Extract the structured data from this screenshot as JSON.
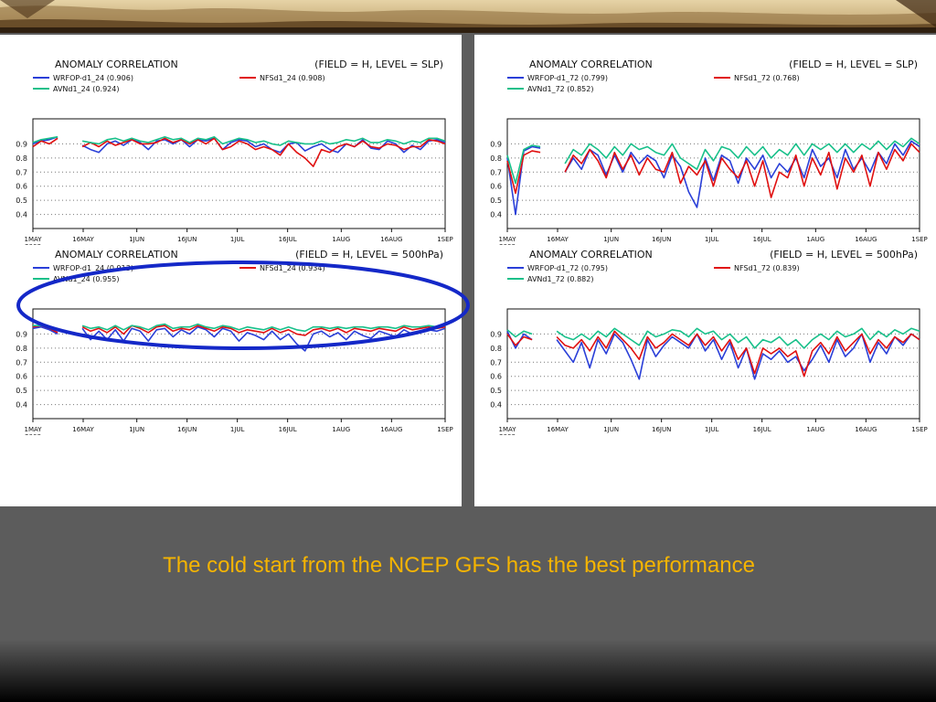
{
  "caption": "The cold start from the NCEP GFS has the best performance",
  "colors": {
    "wrf": "#2a3fd8",
    "nfs": "#e01010",
    "avn": "#18c08a",
    "highlight": "#1428c8",
    "caption": "#f5b400"
  },
  "chart_data": [
    {
      "id": "c1",
      "type": "line",
      "title": "ANOMALY CORRELATION",
      "subtitle": "(FIELD = H, LEVEL = SLP)",
      "legend": [
        "WRFOP-d1_24 (0.906)",
        "NFSd1_24 (0.908)",
        "AVNd1_24 (0.924)"
      ],
      "series": [
        {
          "name": "WRFOP-d1_24",
          "color": "#2a3fd8",
          "values": [
            0.9,
            0.92,
            0.93,
            0.95,
            null,
            null,
            0.89,
            0.86,
            0.84,
            0.9,
            0.92,
            0.89,
            0.93,
            0.91,
            0.86,
            0.92,
            0.93,
            0.9,
            0.93,
            0.88,
            0.93,
            0.92,
            0.94,
            0.86,
            0.91,
            0.93,
            0.92,
            0.88,
            0.9,
            0.86,
            0.84,
            0.9,
            0.91,
            0.85,
            0.88,
            0.9,
            0.86,
            0.84,
            0.9,
            0.88,
            0.93,
            0.87,
            0.86,
            0.92,
            0.9,
            0.84,
            0.89,
            0.86,
            0.92,
            0.93,
            0.91
          ]
        },
        {
          "name": "NFSd1_24",
          "color": "#e01010",
          "values": [
            0.88,
            0.92,
            0.9,
            0.94,
            null,
            null,
            0.88,
            0.91,
            0.88,
            0.92,
            0.89,
            0.91,
            0.93,
            0.9,
            0.9,
            0.91,
            0.94,
            0.91,
            0.93,
            0.9,
            0.93,
            0.9,
            0.94,
            0.86,
            0.88,
            0.92,
            0.9,
            0.86,
            0.88,
            0.86,
            0.82,
            0.9,
            0.84,
            0.8,
            0.74,
            0.86,
            0.84,
            0.88,
            0.9,
            0.88,
            0.92,
            0.88,
            0.87,
            0.9,
            0.89,
            0.86,
            0.88,
            0.88,
            0.93,
            0.92,
            0.9
          ]
        },
        {
          "name": "AVNd1_24",
          "color": "#18c08a",
          "values": [
            0.91,
            0.93,
            0.94,
            0.95,
            null,
            null,
            0.92,
            0.91,
            0.9,
            0.93,
            0.94,
            0.92,
            0.94,
            0.92,
            0.91,
            0.93,
            0.95,
            0.93,
            0.94,
            0.91,
            0.94,
            0.93,
            0.95,
            0.9,
            0.92,
            0.94,
            0.93,
            0.91,
            0.92,
            0.9,
            0.89,
            0.92,
            0.91,
            0.9,
            0.9,
            0.92,
            0.9,
            0.91,
            0.93,
            0.92,
            0.94,
            0.91,
            0.91,
            0.93,
            0.92,
            0.9,
            0.92,
            0.91,
            0.94,
            0.94,
            0.92
          ]
        }
      ],
      "ylim": [
        0.3,
        1.0
      ],
      "yticks": [
        "0.4",
        "0.5",
        "0.6",
        "0.7",
        "0.8",
        "0.9"
      ],
      "xticks": [
        "1MAY",
        "16MAY",
        "1JUN",
        "16JUN",
        "1JUL",
        "16JUL",
        "1AUG",
        "16AUG",
        "1SEP"
      ],
      "year": "2008",
      "xlim": [
        "2008-05-01",
        "2008-09-01"
      ]
    },
    {
      "id": "c2",
      "type": "line",
      "title": "ANOMALY CORRELATION",
      "subtitle": "(FIELD = H, LEVEL = SLP)",
      "legend": [
        "WRFOP-d1_72 (0.799)",
        "NFSd1_72 (0.768)",
        "AVNd1_72 (0.852)"
      ],
      "series": [
        {
          "name": "WRFOP-d1_72",
          "color": "#2a3fd8",
          "values": [
            0.8,
            0.4,
            0.85,
            0.88,
            0.87,
            null,
            null,
            0.7,
            0.8,
            0.72,
            0.86,
            0.82,
            0.68,
            0.82,
            0.7,
            0.84,
            0.76,
            0.82,
            0.78,
            0.66,
            0.82,
            0.74,
            0.56,
            0.45,
            0.8,
            0.64,
            0.82,
            0.78,
            0.62,
            0.8,
            0.72,
            0.82,
            0.66,
            0.76,
            0.7,
            0.8,
            0.66,
            0.86,
            0.74,
            0.8,
            0.66,
            0.86,
            0.72,
            0.8,
            0.7,
            0.84,
            0.76,
            0.9,
            0.82,
            0.92,
            0.88
          ]
        },
        {
          "name": "NFSd1_72",
          "color": "#e01010",
          "values": [
            0.78,
            0.55,
            0.82,
            0.85,
            0.84,
            null,
            null,
            0.7,
            0.82,
            0.76,
            0.86,
            0.78,
            0.66,
            0.84,
            0.72,
            0.82,
            0.68,
            0.8,
            0.72,
            0.7,
            0.84,
            0.62,
            0.74,
            0.68,
            0.78,
            0.6,
            0.8,
            0.72,
            0.66,
            0.78,
            0.6,
            0.78,
            0.52,
            0.7,
            0.66,
            0.82,
            0.6,
            0.8,
            0.68,
            0.84,
            0.58,
            0.8,
            0.7,
            0.82,
            0.6,
            0.84,
            0.72,
            0.86,
            0.78,
            0.9,
            0.84
          ]
        },
        {
          "name": "AVNd1_72",
          "color": "#18c08a",
          "values": [
            0.82,
            0.62,
            0.86,
            0.89,
            0.88,
            null,
            null,
            0.76,
            0.86,
            0.82,
            0.9,
            0.86,
            0.8,
            0.88,
            0.82,
            0.9,
            0.86,
            0.88,
            0.84,
            0.82,
            0.9,
            0.8,
            0.76,
            0.72,
            0.86,
            0.78,
            0.88,
            0.86,
            0.8,
            0.88,
            0.82,
            0.88,
            0.8,
            0.86,
            0.82,
            0.9,
            0.82,
            0.9,
            0.86,
            0.9,
            0.84,
            0.9,
            0.84,
            0.9,
            0.86,
            0.92,
            0.86,
            0.92,
            0.88,
            0.94,
            0.9
          ]
        }
      ],
      "ylim": [
        0.3,
        1.0
      ],
      "yticks": [
        "0.4",
        "0.5",
        "0.6",
        "0.7",
        "0.8",
        "0.9"
      ],
      "xticks": [
        "1MAY",
        "16MAY",
        "1JUN",
        "16JUN",
        "1JUL",
        "16JUL",
        "1AUG",
        "16AUG",
        "1SEP"
      ],
      "year": "2008",
      "xlim": [
        "2008-05-01",
        "2008-09-01"
      ]
    },
    {
      "id": "c3",
      "type": "line",
      "title": "ANOMALY CORRELATION",
      "subtitle": "(FIELD = H, LEVEL = 500hPa)",
      "legend": [
        "WRFOP-d1_24 (0.913)",
        "NFSd1_24 (0.934)",
        "AVNd1_24 (0.955)"
      ],
      "series": [
        {
          "name": "WRFOP-d1_24",
          "color": "#2a3fd8",
          "values": [
            0.94,
            0.95,
            0.93,
            0.9,
            null,
            null,
            0.94,
            0.86,
            0.92,
            0.86,
            0.93,
            0.85,
            0.94,
            0.92,
            0.85,
            0.93,
            0.94,
            0.88,
            0.93,
            0.9,
            0.95,
            0.93,
            0.88,
            0.94,
            0.92,
            0.85,
            0.91,
            0.89,
            0.86,
            0.92,
            0.86,
            0.9,
            0.83,
            0.78,
            0.9,
            0.92,
            0.88,
            0.91,
            0.86,
            0.92,
            0.89,
            0.87,
            0.92,
            0.9,
            0.88,
            0.93,
            0.9,
            0.91,
            0.93,
            0.92,
            0.94
          ]
        },
        {
          "name": "NFSd1_24",
          "color": "#e01010",
          "values": [
            0.95,
            0.96,
            0.94,
            0.91,
            null,
            null,
            0.95,
            0.92,
            0.94,
            0.91,
            0.95,
            0.9,
            0.96,
            0.94,
            0.91,
            0.95,
            0.96,
            0.92,
            0.94,
            0.93,
            0.96,
            0.94,
            0.92,
            0.95,
            0.94,
            0.91,
            0.93,
            0.92,
            0.91,
            0.94,
            0.91,
            0.93,
            0.9,
            0.89,
            0.93,
            0.94,
            0.92,
            0.94,
            0.91,
            0.94,
            0.93,
            0.92,
            0.94,
            0.93,
            0.92,
            0.95,
            0.93,
            0.94,
            0.95,
            0.94,
            0.95
          ]
        },
        {
          "name": "AVNd1_24",
          "color": "#18c08a",
          "values": [
            0.96,
            0.96,
            0.95,
            0.93,
            null,
            null,
            0.96,
            0.94,
            0.95,
            0.93,
            0.96,
            0.93,
            0.96,
            0.95,
            0.93,
            0.96,
            0.97,
            0.94,
            0.95,
            0.95,
            0.97,
            0.95,
            0.94,
            0.96,
            0.95,
            0.93,
            0.95,
            0.94,
            0.93,
            0.95,
            0.93,
            0.95,
            0.93,
            0.92,
            0.95,
            0.95,
            0.94,
            0.95,
            0.94,
            0.95,
            0.95,
            0.94,
            0.95,
            0.95,
            0.94,
            0.96,
            0.95,
            0.95,
            0.96,
            0.95,
            0.96
          ]
        }
      ],
      "ylim": [
        0.3,
        1.0
      ],
      "yticks": [
        "0.4",
        "0.5",
        "0.6",
        "0.7",
        "0.8",
        "0.9"
      ],
      "xticks": [
        "1MAY",
        "16MAY",
        "1JUN",
        "16JUN",
        "1JUL",
        "16JUL",
        "1AUG",
        "16AUG",
        "1SEP"
      ],
      "year": "2008",
      "xlim": [
        "2008-05-01",
        "2008-09-01"
      ]
    },
    {
      "id": "c4",
      "type": "line",
      "title": "ANOMALY CORRELATION",
      "subtitle": "(FIELD = H, LEVEL = 500hPa)",
      "legend": [
        "WRFOP-d1_72 (0.795)",
        "NFSd1_72 (0.839)",
        "AVNd1_72 (0.882)"
      ],
      "series": [
        {
          "name": "WRFOP-d1_72",
          "color": "#2a3fd8",
          "values": [
            0.92,
            0.8,
            0.9,
            0.86,
            null,
            null,
            0.86,
            0.78,
            0.7,
            0.84,
            0.66,
            0.86,
            0.76,
            0.9,
            0.84,
            0.72,
            0.58,
            0.86,
            0.74,
            0.82,
            0.88,
            0.84,
            0.8,
            0.9,
            0.78,
            0.86,
            0.72,
            0.84,
            0.66,
            0.8,
            0.58,
            0.76,
            0.72,
            0.78,
            0.7,
            0.74,
            0.64,
            0.72,
            0.82,
            0.7,
            0.86,
            0.74,
            0.8,
            0.9,
            0.7,
            0.84,
            0.76,
            0.88,
            0.82,
            0.9,
            0.86
          ]
        },
        {
          "name": "NFSd1_72",
          "color": "#e01010",
          "values": [
            0.9,
            0.82,
            0.88,
            0.86,
            null,
            null,
            0.88,
            0.82,
            0.8,
            0.86,
            0.78,
            0.88,
            0.8,
            0.92,
            0.86,
            0.8,
            0.72,
            0.88,
            0.8,
            0.84,
            0.9,
            0.86,
            0.82,
            0.9,
            0.82,
            0.88,
            0.78,
            0.86,
            0.72,
            0.8,
            0.62,
            0.8,
            0.76,
            0.8,
            0.74,
            0.78,
            0.6,
            0.78,
            0.84,
            0.76,
            0.88,
            0.78,
            0.84,
            0.9,
            0.76,
            0.86,
            0.8,
            0.88,
            0.84,
            0.9,
            0.86
          ]
        },
        {
          "name": "AVNd1_72",
          "color": "#18c08a",
          "values": [
            0.93,
            0.88,
            0.92,
            0.9,
            null,
            null,
            0.92,
            0.88,
            0.86,
            0.9,
            0.86,
            0.92,
            0.88,
            0.94,
            0.9,
            0.86,
            0.82,
            0.92,
            0.88,
            0.9,
            0.93,
            0.92,
            0.88,
            0.94,
            0.9,
            0.92,
            0.86,
            0.9,
            0.84,
            0.88,
            0.8,
            0.86,
            0.84,
            0.88,
            0.82,
            0.86,
            0.8,
            0.86,
            0.9,
            0.86,
            0.92,
            0.88,
            0.9,
            0.94,
            0.86,
            0.92,
            0.88,
            0.93,
            0.9,
            0.94,
            0.92
          ]
        }
      ],
      "ylim": [
        0.3,
        1.0
      ],
      "yticks": [
        "0.4",
        "0.5",
        "0.6",
        "0.7",
        "0.8",
        "0.9"
      ],
      "xticks": [
        "1MAY",
        "16MAY",
        "1JUN",
        "16JUN",
        "1JUL",
        "16JUL",
        "1AUG",
        "16AUG",
        "1SEP"
      ],
      "year": "2008",
      "xlim": [
        "2008-05-01",
        "2008-09-01"
      ]
    }
  ]
}
